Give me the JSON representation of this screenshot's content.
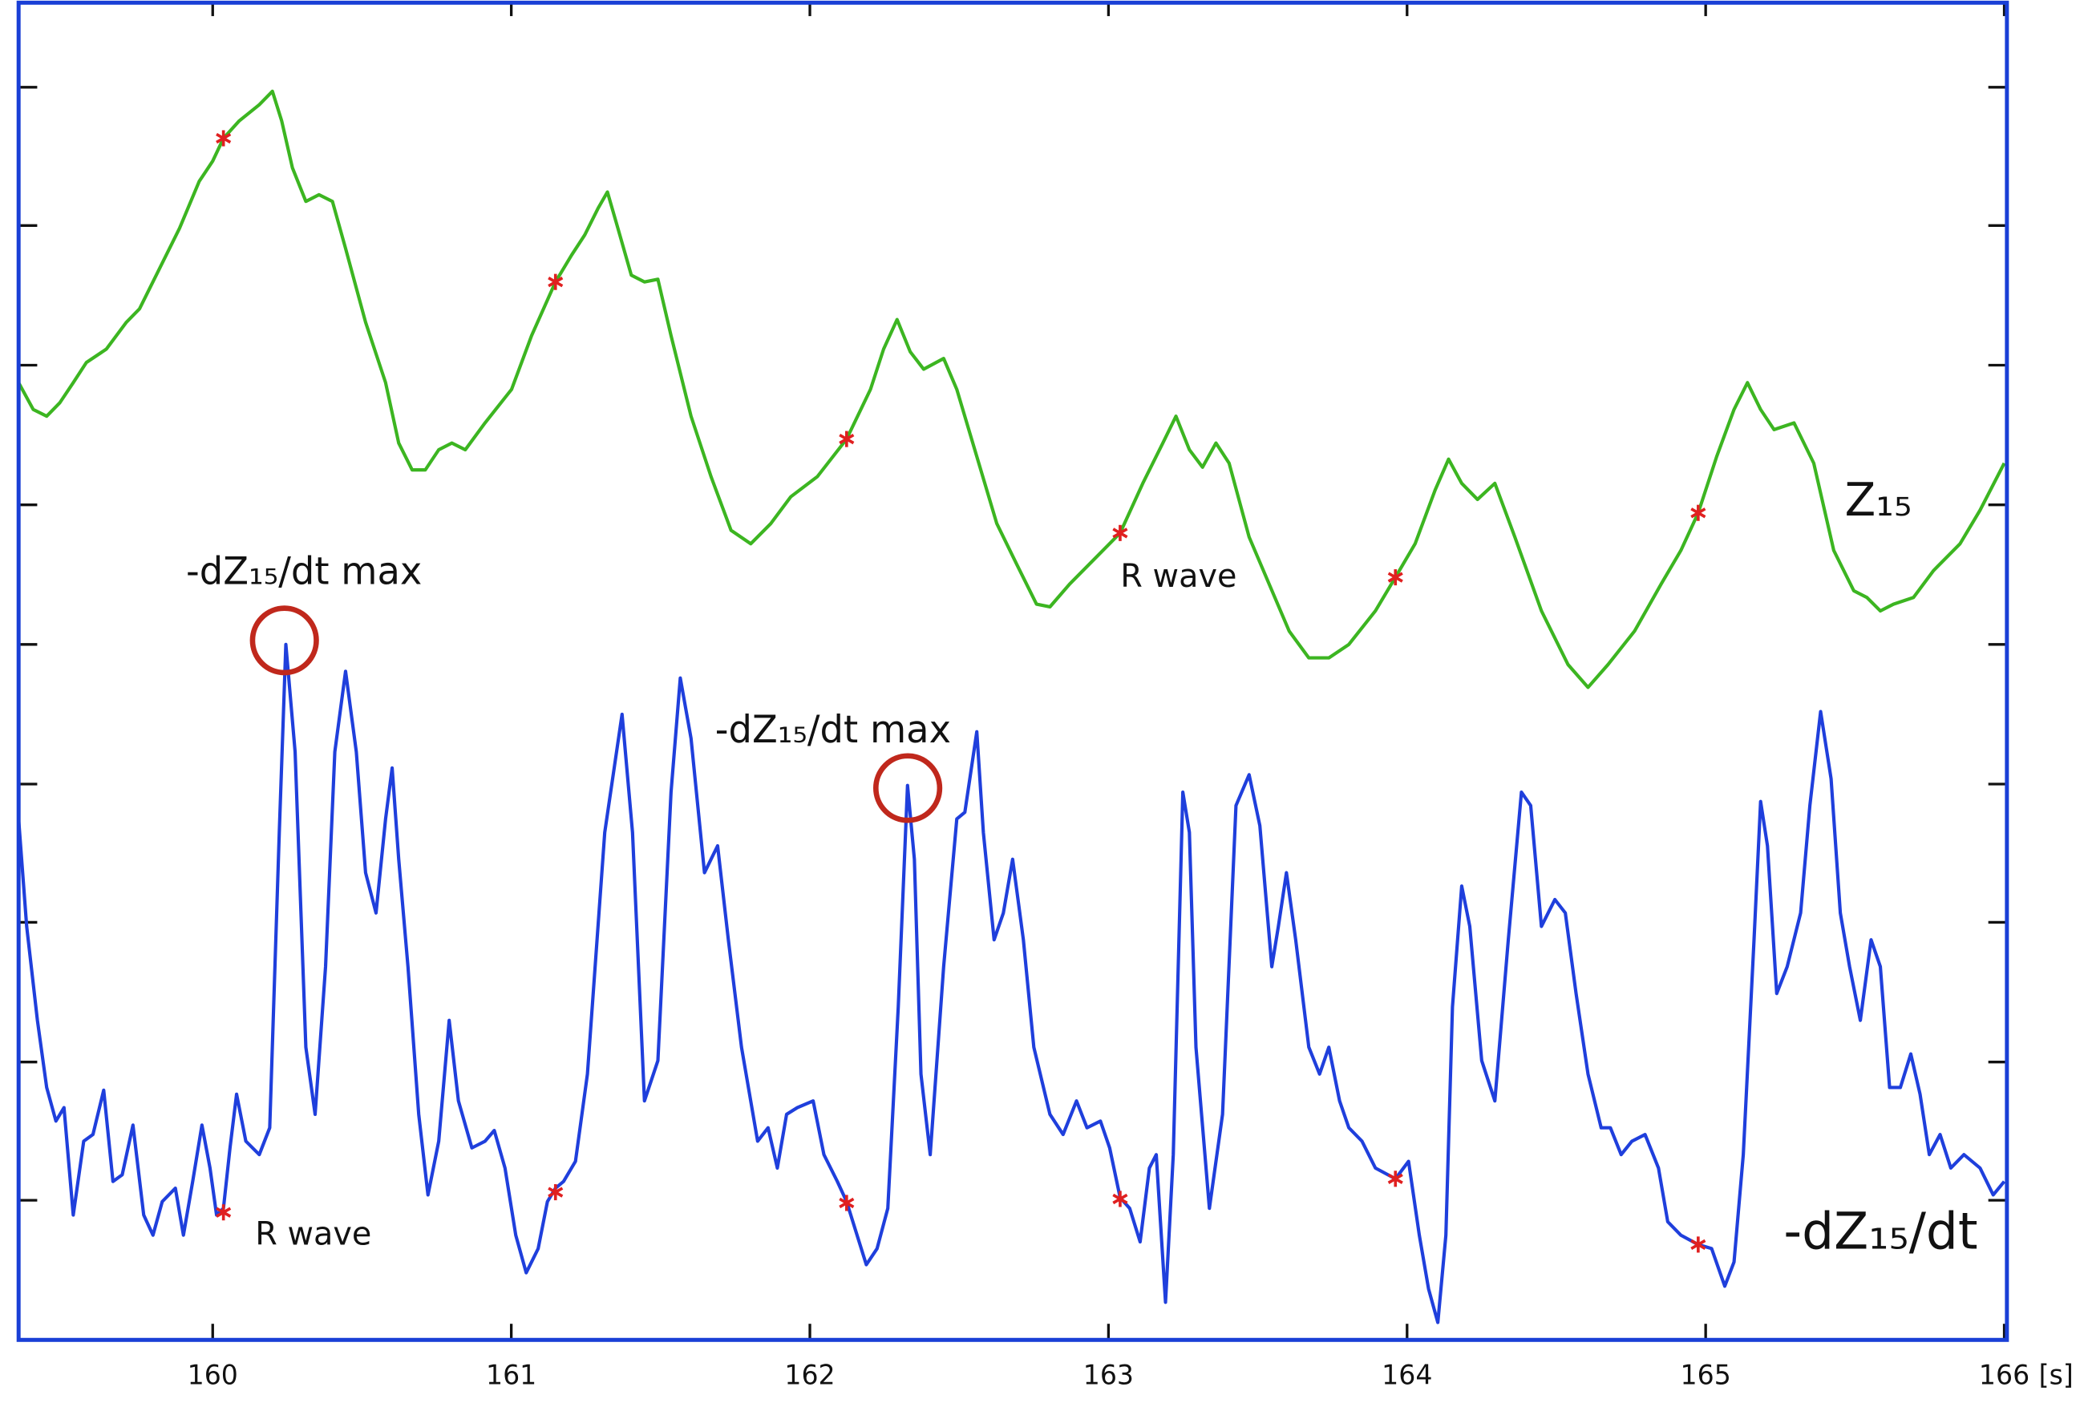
{
  "chart_data": {
    "type": "line",
    "xlabel": "[s]",
    "xlim": [
      159.35,
      166
    ],
    "xticks": [
      160,
      161,
      162,
      163,
      164,
      165,
      166
    ],
    "ylim": [
      0,
      996
    ],
    "yticks": [
      104,
      207,
      311,
      414,
      518,
      622,
      726,
      830,
      933
    ],
    "frame_color": "#1a3fd6",
    "series": [
      {
        "name": "Z₁₅",
        "color": "#3cb521",
        "x": [
          159.35,
          159.399,
          159.444,
          159.488,
          159.533,
          159.577,
          159.644,
          159.711,
          159.755,
          159.822,
          159.889,
          159.955,
          160,
          160.036,
          160.089,
          160.156,
          160.2,
          160.231,
          160.267,
          160.312,
          160.356,
          160.401,
          160.445,
          160.512,
          160.579,
          160.623,
          160.668,
          160.712,
          160.757,
          160.801,
          160.846,
          160.912,
          161.001,
          161.068,
          161.148,
          161.202,
          161.246,
          161.291,
          161.322,
          161.357,
          161.402,
          161.446,
          161.491,
          161.535,
          161.602,
          161.669,
          161.736,
          161.802,
          161.869,
          161.936,
          162.025,
          162.123,
          162.203,
          162.247,
          162.292,
          162.336,
          162.381,
          162.448,
          162.492,
          162.559,
          162.626,
          162.692,
          162.759,
          162.804,
          162.87,
          162.959,
          163.039,
          163.115,
          163.182,
          163.226,
          163.271,
          163.315,
          163.36,
          163.404,
          163.471,
          163.538,
          163.605,
          163.671,
          163.738,
          163.805,
          163.894,
          163.961,
          164.027,
          164.094,
          164.139,
          164.183,
          164.236,
          164.294,
          164.361,
          164.45,
          164.539,
          164.606,
          164.673,
          164.762,
          164.851,
          164.917,
          164.975,
          165.037,
          165.095,
          165.14,
          165.184,
          165.229,
          165.296,
          165.362,
          165.429,
          165.496,
          165.54,
          165.585,
          165.629,
          165.696,
          165.763,
          165.852,
          165.919,
          166
        ],
        "values": [
          713,
          693,
          688,
          698,
          713,
          728,
          738,
          758,
          768,
          798,
          828,
          863,
          878,
          895,
          908,
          920,
          930,
          908,
          873,
          848,
          853,
          848,
          813,
          758,
          713,
          668,
          648,
          648,
          663,
          668,
          663,
          683,
          708,
          748,
          788,
          808,
          823,
          843,
          855,
          828,
          793,
          788,
          790,
          748,
          688,
          643,
          603,
          593,
          608,
          628,
          643,
          671,
          708,
          738,
          760,
          736,
          723,
          731,
          708,
          658,
          608,
          578,
          548,
          546,
          563,
          583,
          601,
          638,
          668,
          688,
          663,
          650,
          668,
          653,
          598,
          563,
          528,
          508,
          508,
          518,
          543,
          568,
          593,
          633,
          656,
          638,
          626,
          638,
          598,
          543,
          503,
          486,
          503,
          528,
          563,
          588,
          616,
          658,
          693,
          713,
          693,
          678,
          683,
          653,
          588,
          558,
          553,
          543,
          548,
          553,
          573,
          593,
          618,
          653
        ]
      },
      {
        "name": "-dZ₁₅/dt",
        "color": "#1f3fdc",
        "x": [
          159.35,
          159.377,
          159.413,
          159.444,
          159.475,
          159.502,
          159.533,
          159.568,
          159.599,
          159.635,
          159.666,
          159.697,
          159.733,
          159.769,
          159.8,
          159.831,
          159.875,
          159.902,
          159.933,
          159.964,
          159.991,
          160.013,
          160.036,
          160.058,
          160.08,
          160.111,
          160.156,
          160.191,
          160.223,
          160.245,
          160.276,
          160.312,
          160.343,
          160.378,
          160.409,
          160.445,
          160.481,
          160.512,
          160.547,
          160.579,
          160.601,
          160.623,
          160.654,
          160.69,
          160.721,
          160.757,
          160.792,
          160.823,
          160.868,
          160.912,
          160.943,
          160.979,
          161.015,
          161.05,
          161.09,
          161.121,
          161.148,
          161.175,
          161.215,
          161.255,
          161.313,
          161.371,
          161.406,
          161.446,
          161.491,
          161.535,
          161.566,
          161.602,
          161.647,
          161.691,
          161.727,
          161.771,
          161.825,
          161.86,
          161.891,
          161.922,
          161.958,
          162.011,
          162.047,
          162.092,
          162.123,
          162.158,
          162.189,
          162.225,
          162.261,
          162.296,
          162.327,
          162.35,
          162.372,
          162.403,
          162.448,
          162.492,
          162.519,
          162.559,
          162.581,
          162.617,
          162.648,
          162.679,
          162.715,
          162.75,
          162.804,
          162.848,
          162.893,
          162.928,
          162.973,
          163.004,
          163.039,
          163.071,
          163.106,
          163.137,
          163.16,
          163.191,
          163.217,
          163.249,
          163.271,
          163.293,
          163.338,
          163.382,
          163.427,
          163.471,
          163.507,
          163.547,
          163.569,
          163.596,
          163.627,
          163.671,
          163.707,
          163.738,
          163.774,
          163.805,
          163.849,
          163.894,
          163.961,
          164.005,
          164.041,
          164.072,
          164.103,
          164.13,
          164.152,
          164.183,
          164.21,
          164.25,
          164.294,
          164.339,
          164.383,
          164.414,
          164.45,
          164.495,
          164.53,
          164.566,
          164.606,
          164.65,
          164.681,
          164.717,
          164.753,
          164.797,
          164.842,
          164.873,
          164.917,
          164.975,
          165.02,
          165.064,
          165.095,
          165.126,
          165.162,
          165.184,
          165.207,
          165.238,
          165.273,
          165.318,
          165.349,
          165.385,
          165.42,
          165.451,
          165.482,
          165.518,
          165.554,
          165.585,
          165.616,
          165.652,
          165.687,
          165.718,
          165.749,
          165.785,
          165.821,
          165.865,
          165.919,
          165.963,
          166
        ],
        "values": [
          388,
          308,
          238,
          188,
          163,
          173,
          93,
          148,
          153,
          186,
          118,
          123,
          160,
          93,
          78,
          103,
          113,
          78,
          118,
          160,
          128,
          93,
          98,
          143,
          183,
          148,
          138,
          158,
          378,
          518,
          438,
          218,
          168,
          278,
          438,
          498,
          438,
          348,
          318,
          388,
          426,
          358,
          278,
          168,
          108,
          148,
          238,
          178,
          143,
          148,
          156,
          128,
          78,
          50,
          68,
          103,
          113,
          118,
          133,
          198,
          378,
          466,
          378,
          178,
          208,
          408,
          493,
          448,
          348,
          368,
          298,
          218,
          148,
          158,
          128,
          168,
          173,
          178,
          138,
          118,
          103,
          78,
          56,
          68,
          98,
          248,
          413,
          358,
          198,
          138,
          278,
          388,
          393,
          453,
          378,
          298,
          318,
          358,
          298,
          218,
          168,
          153,
          178,
          158,
          163,
          143,
          106,
          98,
          73,
          128,
          138,
          28,
          138,
          408,
          378,
          218,
          98,
          168,
          398,
          421,
          383,
          278,
          308,
          348,
          298,
          218,
          198,
          218,
          178,
          158,
          148,
          128,
          120,
          133,
          78,
          38,
          13,
          78,
          248,
          338,
          308,
          208,
          178,
          298,
          408,
          398,
          308,
          328,
          318,
          258,
          198,
          158,
          158,
          138,
          148,
          153,
          128,
          88,
          78,
          71,
          68,
          40,
          58,
          138,
          298,
          401,
          368,
          258,
          278,
          318,
          398,
          468,
          418,
          318,
          278,
          238,
          298,
          278,
          188,
          188,
          213,
          183,
          138,
          153,
          128,
          138,
          128,
          108,
          118
        ]
      },
      {
        "color": "#e02020",
        "marker": "asterisk",
        "x": [
          160.036,
          161.148,
          162.123,
          163.039,
          163.961,
          164.975
        ],
        "values": [
          895,
          788,
          671,
          601,
          568,
          616
        ]
      },
      {
        "color": "#e02020",
        "marker": "asterisk",
        "x": [
          160.036,
          161.148,
          162.123,
          163.039,
          163.961,
          164.975
        ],
        "values": [
          95,
          110,
          102,
          105,
          120,
          71
        ]
      }
    ],
    "annotations": [
      {
        "text": "-dZ₁₅/dt max"
      },
      {
        "text": "-dZ₁₅/dt max"
      },
      {
        "text": "R wave"
      },
      {
        "text": "R wave"
      }
    ]
  }
}
